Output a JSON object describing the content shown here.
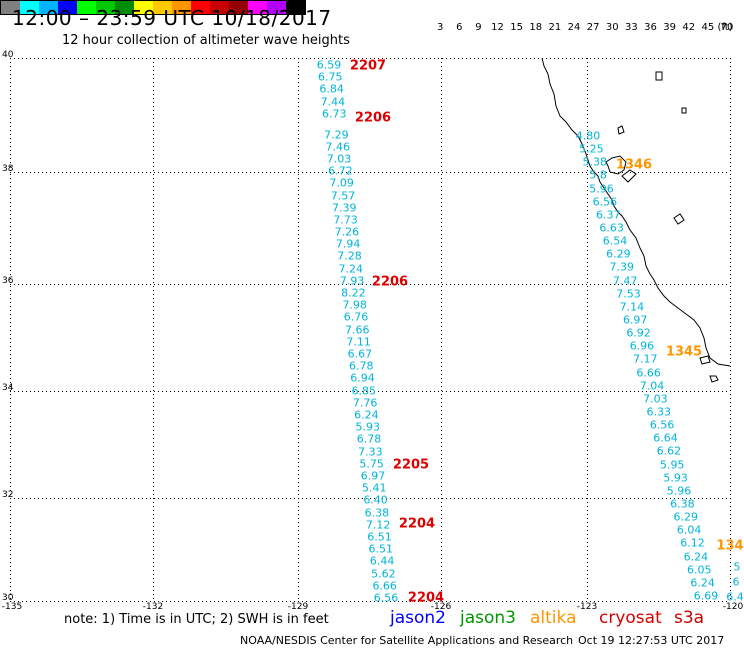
{
  "header": {
    "title": "12:00  –  23:59  UTC  10/18/2017",
    "subtitle": "12 hour collection of altimeter wave heights"
  },
  "legend": {
    "colors": [
      "#808080",
      "#00ffff",
      "#00b4ff",
      "#0000ff",
      "#00ff00",
      "#00c800",
      "#008c00",
      "#ffff00",
      "#ffc800",
      "#ff9600",
      "#ff0000",
      "#c80000",
      "#960000",
      "#ff00ff",
      "#b400ff",
      "#000000"
    ],
    "labels": [
      "3",
      "6",
      "9",
      "12",
      "15",
      "18",
      "21",
      "24",
      "27",
      "30",
      "33",
      "36",
      "39",
      "42",
      "45",
      "70",
      "(ft)"
    ]
  },
  "map": {
    "lat_labels": [
      "40",
      "38",
      "36",
      "34",
      "32",
      "30"
    ],
    "lon_labels": [
      "-135",
      "-132",
      "-129",
      "-126",
      "-123",
      "-120"
    ],
    "colors": {
      "obs": "#00b4dc",
      "jason2": "#0000ff",
      "jason3": "#009600",
      "altika": "#ff9600",
      "cryosat": "#dc0000",
      "s3a": "#c80000"
    },
    "track1": [
      {
        "v": "6.59"
      },
      {
        "v": "6.75"
      },
      {
        "v": "6.84"
      },
      {
        "v": "7.44"
      },
      {
        "v": "6.73"
      },
      {
        "v": "7.29"
      },
      {
        "v": "7.46"
      },
      {
        "v": "7.03"
      },
      {
        "v": "6.72"
      },
      {
        "v": "7.09"
      },
      {
        "v": "7.57"
      },
      {
        "v": "7.39"
      },
      {
        "v": "7.73"
      },
      {
        "v": "7.26"
      },
      {
        "v": "7.94"
      },
      {
        "v": "7.28"
      },
      {
        "v": "7.24"
      },
      {
        "v": "7.93"
      },
      {
        "v": "8.22"
      },
      {
        "v": "7.98"
      },
      {
        "v": "6.76"
      },
      {
        "v": "7.66"
      },
      {
        "v": "7.11"
      },
      {
        "v": "6.67"
      },
      {
        "v": "6.78"
      },
      {
        "v": "6.94"
      },
      {
        "v": "6.85"
      },
      {
        "v": "7.76"
      },
      {
        "v": "6.24"
      },
      {
        "v": "5.93"
      },
      {
        "v": "6.78"
      },
      {
        "v": "7.33"
      },
      {
        "v": "5.75"
      },
      {
        "v": "6.97"
      },
      {
        "v": "5.41"
      },
      {
        "v": "6.40"
      },
      {
        "v": "6.38"
      },
      {
        "v": "7.12"
      },
      {
        "v": "6.51"
      },
      {
        "v": "6.51"
      },
      {
        "v": "6.44"
      },
      {
        "v": "5.62"
      },
      {
        "v": "6.66"
      },
      {
        "v": "6.56"
      }
    ],
    "track2": [
      {
        "v": "4.80"
      },
      {
        "v": "5.25"
      },
      {
        "v": "5.38"
      },
      {
        "v": "5.8"
      },
      {
        "v": "5.96"
      },
      {
        "v": "6.56"
      },
      {
        "v": "6.37"
      },
      {
        "v": "6.63"
      },
      {
        "v": "6.54"
      },
      {
        "v": "6.29"
      },
      {
        "v": "7.39"
      },
      {
        "v": "7.47"
      },
      {
        "v": "7.53"
      },
      {
        "v": "7.14"
      },
      {
        "v": "6.97"
      },
      {
        "v": "6.92"
      },
      {
        "v": "6.96"
      },
      {
        "v": "7.17"
      },
      {
        "v": "6.66"
      },
      {
        "v": "7.04"
      },
      {
        "v": "7.03"
      },
      {
        "v": "6.33"
      },
      {
        "v": "6.56"
      },
      {
        "v": "6.64"
      },
      {
        "v": "6.62"
      },
      {
        "v": "5.95"
      },
      {
        "v": "5.93"
      },
      {
        "v": "5.96"
      },
      {
        "v": "6.38"
      },
      {
        "v": "6.29"
      },
      {
        "v": "6.04"
      },
      {
        "v": "6.12"
      },
      {
        "v": "6.24"
      },
      {
        "v": "6.05"
      },
      {
        "v": "6.24"
      },
      {
        "v": "6.69"
      }
    ],
    "track3": [
      {
        "v": "5"
      },
      {
        "v": "6"
      },
      {
        "v": "6.4"
      }
    ],
    "pass_labels": [
      {
        "text": "2207",
        "sat": "cryosat"
      },
      {
        "text": "2206",
        "sat": "cryosat"
      },
      {
        "text": "2206",
        "sat": "cryosat"
      },
      {
        "text": "2205",
        "sat": "cryosat"
      },
      {
        "text": "2204",
        "sat": "cryosat"
      },
      {
        "text": "2204",
        "sat": "cryosat"
      },
      {
        "text": "1346",
        "sat": "altika"
      },
      {
        "text": "1345",
        "sat": "altika"
      },
      {
        "text": "134",
        "sat": "altika"
      }
    ]
  },
  "footer": {
    "note": "note:  1) Time is in UTC;  2) SWH is in feet",
    "satellites": [
      {
        "name": "jason2",
        "color": "#0000ff"
      },
      {
        "name": "jason3",
        "color": "#009600"
      },
      {
        "name": "altika",
        "color": "#ff9600"
      },
      {
        "name": "cryosat",
        "color": "#dc0000"
      },
      {
        "name": "s3a",
        "color": "#c80000"
      }
    ],
    "credit": "NOAA/NESDIS Center for Satellite Applications and Research",
    "timestamp": "Oct 19 12:27:53 UTC 2017"
  }
}
